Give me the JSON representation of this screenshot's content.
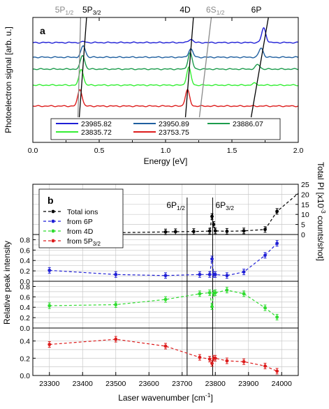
{
  "chart_data": [
    {
      "type": "line",
      "panel_label": "a",
      "xlabel": "Energy [eV]",
      "ylabel": "Photoelectron signal [arb. u.]",
      "xlim": [
        0.0,
        2.0
      ],
      "xticks": [
        "0.0",
        "0.5",
        "1.0",
        "1.5",
        "2.0"
      ],
      "grid": false,
      "legend_position": "bottom-center",
      "colors": {
        "23985.82": "#1f1fd6",
        "23950.89": "#1f5f9f",
        "23886.07": "#1c9c4c",
        "23835.72": "#33ee33",
        "23753.75": "#dd1c1c"
      },
      "series": [
        {
          "name": "23985.82",
          "baseline": 5,
          "peaks": [
            {
              "x": 0.385,
              "h": 0.06
            },
            {
              "x": 1.19,
              "h": 0.22
            },
            {
              "x": 1.74,
              "h": 0.95
            }
          ]
        },
        {
          "name": "23950.89",
          "baseline": 4,
          "peaks": [
            {
              "x": 0.38,
              "h": 0.75
            },
            {
              "x": 1.19,
              "h": 0.55
            },
            {
              "x": 1.72,
              "h": 0.6
            }
          ]
        },
        {
          "name": "23886.07",
          "baseline": 3,
          "peaks": [
            {
              "x": 0.375,
              "h": 0.9
            },
            {
              "x": 1.185,
              "h": 1.05
            },
            {
              "x": 1.695,
              "h": 0.3
            }
          ]
        },
        {
          "name": "23835.72",
          "baseline": 2,
          "peaks": [
            {
              "x": 0.365,
              "h": 1.05
            },
            {
              "x": 1.175,
              "h": 1.15
            },
            {
              "x": 1.67,
              "h": 0.12
            }
          ]
        },
        {
          "name": "23753.75",
          "baseline": 1,
          "peaks": [
            {
              "x": 0.355,
              "h": 1.1
            },
            {
              "x": 1.165,
              "h": 1.05
            }
          ]
        }
      ],
      "annotations": [
        {
          "label": "5P",
          "sub": "1/2",
          "color": "#8a8a8a",
          "x_start": 0.34,
          "x_end": 0.36
        },
        {
          "label": "5P",
          "sub": "3/2",
          "color": "#000000",
          "x_start": 0.35,
          "x_end": 0.405
        },
        {
          "label": "4D",
          "sub": "",
          "color": "#000000",
          "x_start": 1.15,
          "x_end": 1.21
        },
        {
          "label": "6S",
          "sub": "1/2",
          "color": "#8a8a8a",
          "x_start": 1.255,
          "x_end": 1.345
        },
        {
          "label": "6P",
          "sub": "",
          "color": "#000000",
          "x_start": 1.645,
          "x_end": 1.775
        }
      ]
    },
    {
      "type": "line",
      "panel_label": "b",
      "xlabel": "Laser wavenumber [cm",
      "xlabel_sup": "-1",
      "xlabel_end": "]",
      "ylabel": "Relative peak intensity",
      "y2label": "Total PI [x10",
      "y2label_sup": "-3",
      "y2label_end": " counts/shot]",
      "xlim": [
        23250,
        24050
      ],
      "xticks": [
        "23300",
        "23400",
        "23500",
        "23600",
        "23700",
        "23800",
        "23900",
        "24000"
      ],
      "y2lim": [
        0,
        25
      ],
      "y2ticks": [
        "0",
        "5",
        "10",
        "15",
        "20",
        "25"
      ],
      "grid": true,
      "legend_position": "top-left",
      "vlines": [
        {
          "label": "6P",
          "sub": "1/2",
          "x": 23715
        },
        {
          "label": "6P",
          "sub": "3/2",
          "x": 23792
        }
      ],
      "subpanels": [
        {
          "name": "Total ions",
          "color": "#000000",
          "ylim": [
            0,
            25
          ],
          "yticks": [],
          "x": [
            23300,
            23500,
            23650,
            23680,
            23735,
            23783,
            23790,
            23795,
            23800,
            23835,
            23886,
            23950,
            23986,
            24050
          ],
          "y": [
            0.8,
            0.9,
            1.3,
            1.4,
            1.5,
            1.7,
            9.0,
            5.0,
            1.8,
            1.6,
            1.8,
            2.5,
            11.5,
            20.5
          ]
        },
        {
          "name": "from 6P",
          "color": "#1f1fd6",
          "ylim": [
            0,
            0.9
          ],
          "yticks": [
            "0.0",
            "0.2",
            "0.4",
            "0.6",
            "0.8"
          ],
          "x": [
            23300,
            23500,
            23650,
            23753,
            23783,
            23790,
            23795,
            23800,
            23835,
            23886,
            23950,
            23986
          ],
          "y": [
            0.21,
            0.13,
            0.11,
            0.13,
            0.13,
            0.43,
            0.13,
            0.13,
            0.11,
            0.18,
            0.5,
            0.73
          ]
        },
        {
          "name": "from 4D",
          "color": "#2fdc2f",
          "ylim": [
            0,
            0.9
          ],
          "yticks": [
            "0.0",
            "0.2",
            "0.4",
            "0.6",
            "0.8"
          ],
          "x": [
            23300,
            23500,
            23650,
            23753,
            23783,
            23790,
            23795,
            23800,
            23835,
            23886,
            23950,
            23986
          ],
          "y": [
            0.43,
            0.45,
            0.55,
            0.66,
            0.68,
            0.41,
            0.67,
            0.68,
            0.73,
            0.66,
            0.39,
            0.21
          ]
        },
        {
          "name": "from 5P",
          "name_sub": "3/2",
          "color": "#dd1c1c",
          "ylim": [
            0,
            0.55
          ],
          "yticks": [
            "0.0",
            "0.2",
            "0.4"
          ],
          "x": [
            23300,
            23500,
            23650,
            23753,
            23783,
            23790,
            23795,
            23800,
            23835,
            23886,
            23950,
            23986
          ],
          "y": [
            0.36,
            0.42,
            0.34,
            0.21,
            0.19,
            0.14,
            0.2,
            0.2,
            0.17,
            0.16,
            0.11,
            0.05
          ]
        }
      ]
    }
  ]
}
